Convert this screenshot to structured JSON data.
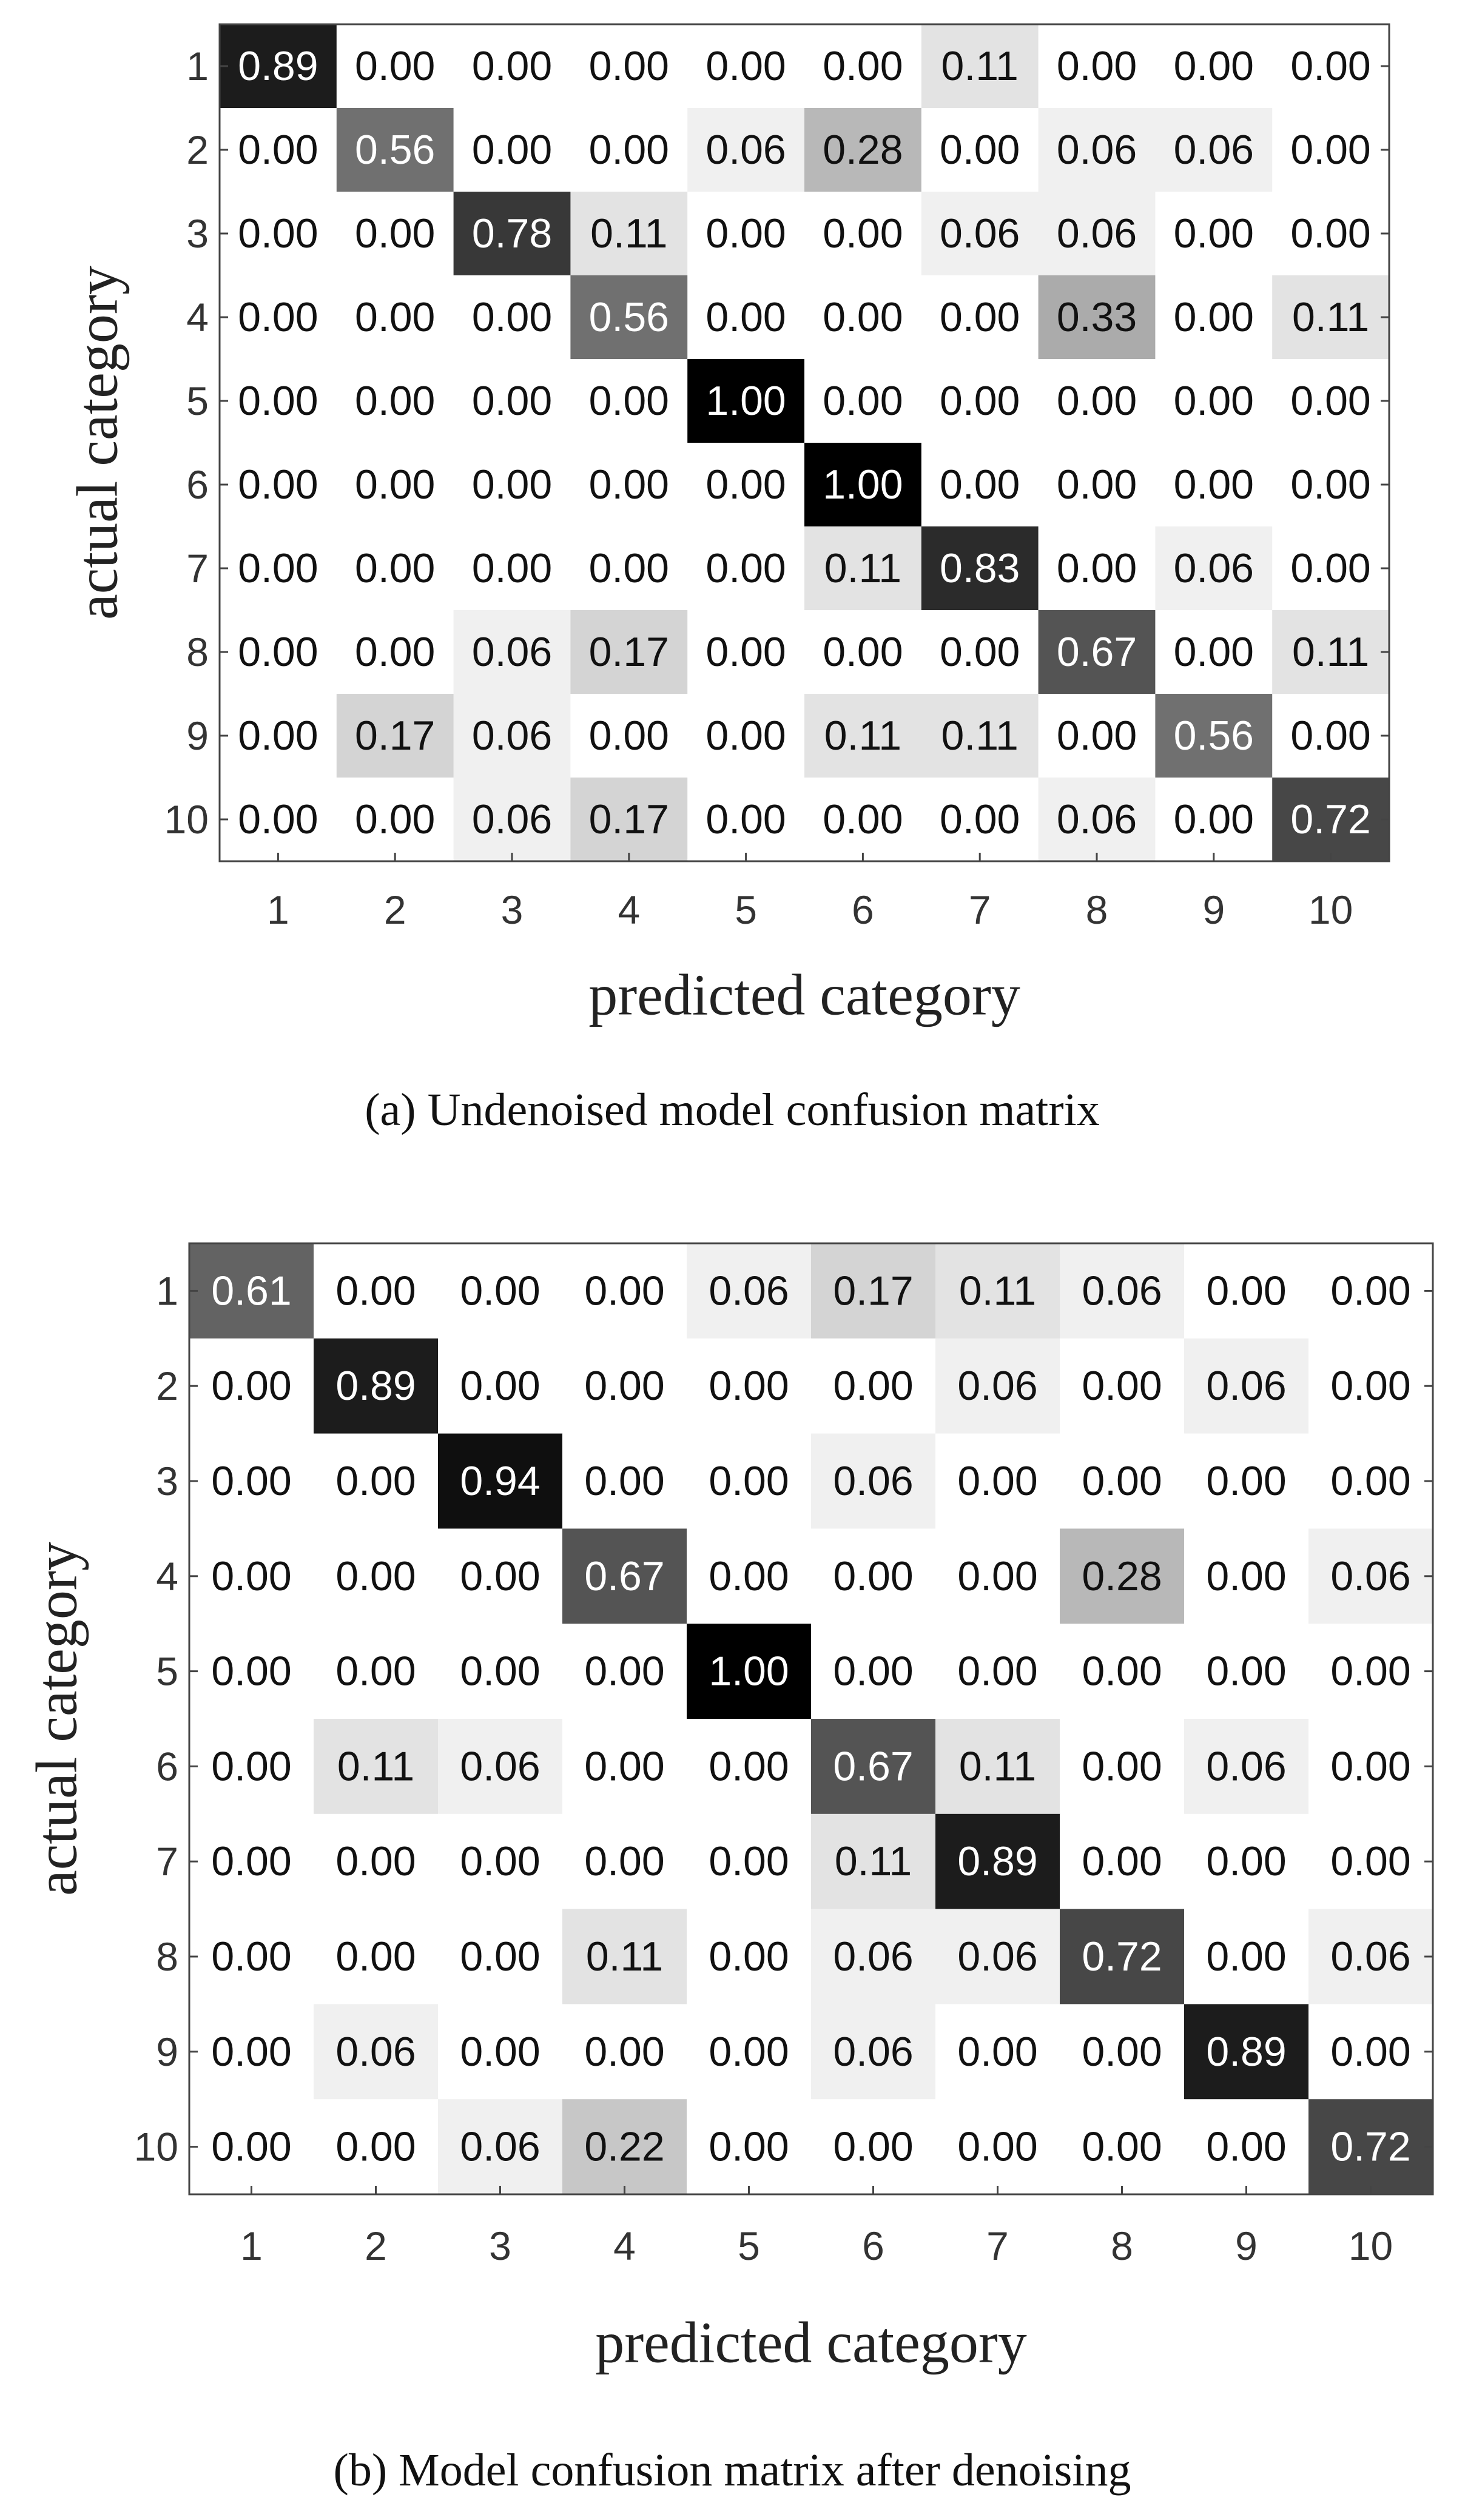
{
  "chart_data": [
    {
      "type": "heatmap",
      "caption": "(a) Undenoised model confusion matrix",
      "x_label": "predicted category",
      "y_label": "actual category",
      "x_categories": [
        "1",
        "2",
        "3",
        "4",
        "5",
        "6",
        "7",
        "8",
        "9",
        "10"
      ],
      "y_categories": [
        "1",
        "2",
        "3",
        "4",
        "5",
        "6",
        "7",
        "8",
        "9",
        "10"
      ],
      "color_low": "#ffffff",
      "color_high": "#000000",
      "values": [
        [
          0.89,
          0,
          0,
          0,
          0,
          0,
          0.11,
          0,
          0,
          0
        ],
        [
          0,
          0.56,
          0,
          0,
          0.06,
          0.28,
          0,
          0.06,
          0.06,
          0
        ],
        [
          0,
          0,
          0.78,
          0.11,
          0,
          0,
          0.06,
          0.06,
          0,
          0
        ],
        [
          0,
          0,
          0,
          0.56,
          0,
          0,
          0,
          0.33,
          0,
          0.11
        ],
        [
          0,
          0,
          0,
          0,
          1,
          0,
          0,
          0,
          0,
          0
        ],
        [
          0,
          0,
          0,
          0,
          0,
          1,
          0,
          0,
          0,
          0
        ],
        [
          0,
          0,
          0,
          0,
          0,
          0.11,
          0.83,
          0,
          0.06,
          0
        ],
        [
          0,
          0,
          0.06,
          0.17,
          0,
          0,
          0,
          0.67,
          0,
          0.11
        ],
        [
          0,
          0.17,
          0.06,
          0,
          0,
          0.11,
          0.11,
          0,
          0.56,
          0
        ],
        [
          0,
          0,
          0.06,
          0.17,
          0,
          0,
          0,
          0.06,
          0,
          0.72
        ]
      ],
      "value_labels": [
        [
          "0.89",
          "0.00",
          "0.00",
          "0.00",
          "0.00",
          "0.00",
          "0.11",
          "0.00",
          "0.00",
          "0.00"
        ],
        [
          "0.00",
          "0.56",
          "0.00",
          "0.00",
          "0.06",
          "0.28",
          "0.00",
          "0.06",
          "0.06",
          "0.00"
        ],
        [
          "0.00",
          "0.00",
          "0.78",
          "0.11",
          "0.00",
          "0.00",
          "0.06",
          "0.06",
          "0.00",
          "0.00"
        ],
        [
          "0.00",
          "0.00",
          "0.00",
          "0.56",
          "0.00",
          "0.00",
          "0.00",
          "0.33",
          "0.00",
          "0.11"
        ],
        [
          "0.00",
          "0.00",
          "0.00",
          "0.00",
          "1.00",
          "0.00",
          "0.00",
          "0.00",
          "0.00",
          "0.00"
        ],
        [
          "0.00",
          "0.00",
          "0.00",
          "0.00",
          "0.00",
          "1.00",
          "0.00",
          "0.00",
          "0.00",
          "0.00"
        ],
        [
          "0.00",
          "0.00",
          "0.00",
          "0.00",
          "0.00",
          "0.11",
          "0.83",
          "0.00",
          "0.06",
          "0.00"
        ],
        [
          "0.00",
          "0.00",
          "0.06",
          "0.17",
          "0.00",
          "0.00",
          "0.00",
          "0.67",
          "0.00",
          "0.11"
        ],
        [
          "0.00",
          "0.17",
          "0.06",
          "0.00",
          "0.00",
          "0.11",
          "0.11",
          "0.00",
          "0.56",
          "0.00"
        ],
        [
          "0.00",
          "0.00",
          "0.06",
          "0.17",
          "0.00",
          "0.00",
          "0.00",
          "0.06",
          "0.00",
          "0.72"
        ]
      ]
    },
    {
      "type": "heatmap",
      "caption": "(b) Model confusion matrix after denoising",
      "x_label": "predicted category",
      "y_label": "actual category",
      "x_categories": [
        "1",
        "2",
        "3",
        "4",
        "5",
        "6",
        "7",
        "8",
        "9",
        "10"
      ],
      "y_categories": [
        "1",
        "2",
        "3",
        "4",
        "5",
        "6",
        "7",
        "8",
        "9",
        "10"
      ],
      "color_low": "#ffffff",
      "color_high": "#000000",
      "values": [
        [
          0.61,
          0,
          0,
          0,
          0.06,
          0.17,
          0.11,
          0.06,
          0,
          0
        ],
        [
          0,
          0.89,
          0,
          0,
          0,
          0,
          0.06,
          0,
          0.06,
          0
        ],
        [
          0,
          0,
          0.94,
          0,
          0,
          0.06,
          0,
          0,
          0,
          0
        ],
        [
          0,
          0,
          0,
          0.67,
          0,
          0,
          0,
          0.28,
          0,
          0.06
        ],
        [
          0,
          0,
          0,
          0,
          1,
          0,
          0,
          0,
          0,
          0
        ],
        [
          0,
          0.11,
          0.06,
          0,
          0,
          0.67,
          0.11,
          0,
          0.06,
          0
        ],
        [
          0,
          0,
          0,
          0,
          0,
          0.11,
          0.89,
          0,
          0,
          0
        ],
        [
          0,
          0,
          0,
          0.11,
          0,
          0.06,
          0.06,
          0.72,
          0,
          0.06
        ],
        [
          0,
          0.06,
          0,
          0,
          0,
          0.06,
          0,
          0,
          0.89,
          0
        ],
        [
          0,
          0,
          0.06,
          0.22,
          0,
          0,
          0,
          0,
          0,
          0.72
        ]
      ],
      "value_labels": [
        [
          "0.61",
          "0.00",
          "0.00",
          "0.00",
          "0.06",
          "0.17",
          "0.11",
          "0.06",
          "0.00",
          "0.00"
        ],
        [
          "0.00",
          "0.89",
          "0.00",
          "0.00",
          "0.00",
          "0.00",
          "0.06",
          "0.00",
          "0.06",
          "0.00"
        ],
        [
          "0.00",
          "0.00",
          "0.94",
          "0.00",
          "0.00",
          "0.06",
          "0.00",
          "0.00",
          "0.00",
          "0.00"
        ],
        [
          "0.00",
          "0.00",
          "0.00",
          "0.67",
          "0.00",
          "0.00",
          "0.00",
          "0.28",
          "0.00",
          "0.06"
        ],
        [
          "0.00",
          "0.00",
          "0.00",
          "0.00",
          "1.00",
          "0.00",
          "0.00",
          "0.00",
          "0.00",
          "0.00"
        ],
        [
          "0.00",
          "0.11",
          "0.06",
          "0.00",
          "0.00",
          "0.67",
          "0.11",
          "0.00",
          "0.06",
          "0.00"
        ],
        [
          "0.00",
          "0.00",
          "0.00",
          "0.00",
          "0.00",
          "0.11",
          "0.89",
          "0.00",
          "0.00",
          "0.00"
        ],
        [
          "0.00",
          "0.00",
          "0.00",
          "0.11",
          "0.00",
          "0.06",
          "0.06",
          "0.72",
          "0.00",
          "0.06"
        ],
        [
          "0.00",
          "0.06",
          "0.00",
          "0.00",
          "0.00",
          "0.06",
          "0.00",
          "0.00",
          "0.89",
          "0.00"
        ],
        [
          "0.00",
          "0.00",
          "0.06",
          "0.22",
          "0.00",
          "0.00",
          "0.00",
          "0.00",
          "0.00",
          "0.72"
        ]
      ]
    }
  ]
}
